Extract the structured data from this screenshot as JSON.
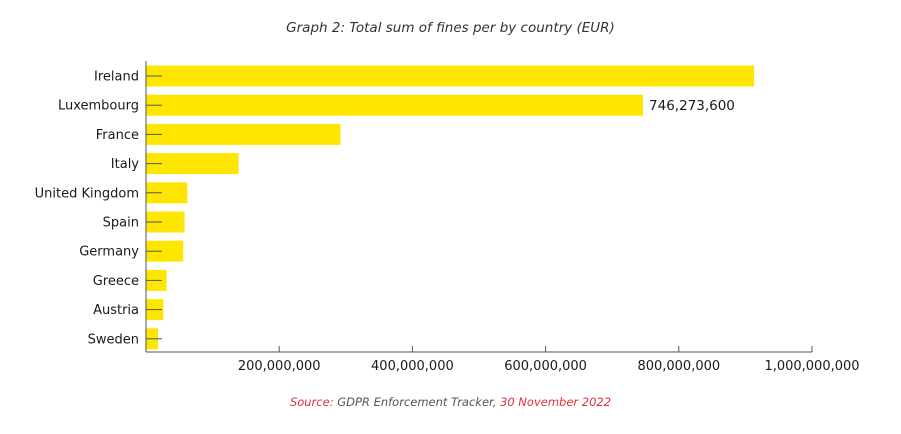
{
  "chart_data": {
    "type": "bar",
    "orientation": "horizontal",
    "title": "Graph 2: Total sum of fines per by country (EUR)",
    "categories": [
      "Ireland",
      "Luxembourg",
      "France",
      "Italy",
      "United Kingdom",
      "Spain",
      "Germany",
      "Greece",
      "Austria",
      "Sweden"
    ],
    "values": [
      913000000,
      746273600,
      292000000,
      139000000,
      62000000,
      58000000,
      56000000,
      31000000,
      26000000,
      18000000
    ],
    "data_labels": [
      {
        "category": "Luxembourg",
        "text": "746,273,600"
      }
    ],
    "xlim": [
      0,
      1000000000
    ],
    "x_ticks": [
      200000000,
      400000000,
      600000000,
      800000000,
      1000000000
    ],
    "x_tick_labels": [
      "200,000,000",
      "400,000,000",
      "600,000,000",
      "800,000,000",
      "1,000,000,000"
    ],
    "xlabel": "",
    "ylabel": "",
    "grid": false,
    "bar_color": "#ffe600",
    "axis_color": "#555555"
  },
  "source": {
    "prefix": "Source:",
    "name": "GDPR Enforcement Tracker,",
    "date": "30 November 2022",
    "accent_color": "#e0313a"
  }
}
